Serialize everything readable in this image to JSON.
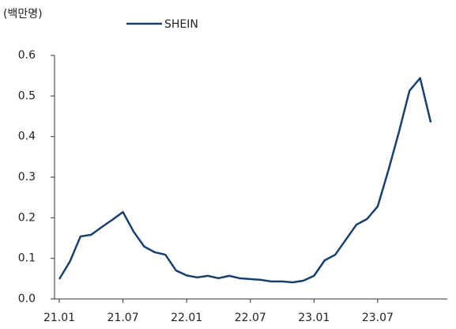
{
  "chart_data": {
    "type": "line",
    "unit_label": "(백만명)",
    "categories": [
      "21.01",
      null,
      null,
      null,
      null,
      null,
      "21.07",
      null,
      null,
      null,
      null,
      null,
      "22.01",
      null,
      null,
      null,
      null,
      null,
      "22.07",
      null,
      null,
      null,
      null,
      null,
      "23.01",
      null,
      null,
      null,
      null,
      null,
      "23.07",
      null,
      null,
      null,
      null,
      null
    ],
    "series": [
      {
        "name": "SHEIN",
        "color": "#17406f",
        "values": [
          0.049,
          0.092,
          0.154,
          0.158,
          0.177,
          0.195,
          0.214,
          0.166,
          0.129,
          0.115,
          0.109,
          0.07,
          0.058,
          0.053,
          0.057,
          0.051,
          0.057,
          0.051,
          0.049,
          0.047,
          0.043,
          0.043,
          0.041,
          0.045,
          0.057,
          0.095,
          0.109,
          0.146,
          0.183,
          0.197,
          0.228,
          0.316,
          0.411,
          0.513,
          0.544,
          0.435
        ]
      }
    ],
    "ylim": [
      0,
      0.6
    ],
    "yticks": [
      {
        "value": 0,
        "label": "0.0"
      },
      0.1,
      0.2,
      0.3,
      0.4,
      0.5,
      0.6
    ]
  }
}
